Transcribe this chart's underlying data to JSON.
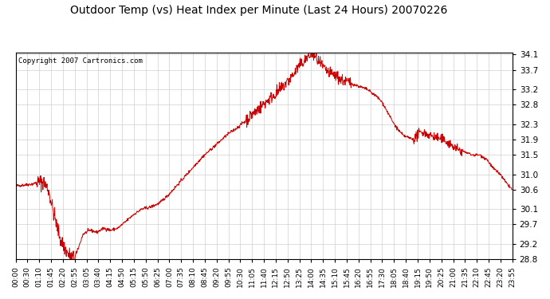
{
  "title": "Outdoor Temp (vs) Heat Index per Minute (Last 24 Hours) 20070226",
  "copyright": "Copyright 2007 Cartronics.com",
  "line_color": "#cc0000",
  "bg_color": "#ffffff",
  "grid_color": "#cccccc",
  "ylim": [
    28.8,
    34.15
  ],
  "yticks": [
    28.8,
    29.2,
    29.7,
    30.1,
    30.6,
    31.0,
    31.5,
    31.9,
    32.3,
    32.8,
    33.2,
    33.7,
    34.1
  ],
  "xtick_labels": [
    "00:00",
    "00:30",
    "01:10",
    "01:45",
    "02:20",
    "02:55",
    "03:05",
    "03:40",
    "04:15",
    "04:50",
    "05:15",
    "05:50",
    "06:25",
    "07:00",
    "07:35",
    "08:10",
    "08:45",
    "09:20",
    "09:55",
    "10:30",
    "11:05",
    "11:40",
    "12:15",
    "12:50",
    "13:25",
    "14:00",
    "14:35",
    "15:10",
    "15:45",
    "16:20",
    "16:55",
    "17:30",
    "18:05",
    "18:40",
    "19:15",
    "19:50",
    "20:25",
    "21:00",
    "21:35",
    "22:10",
    "22:45",
    "23:20",
    "23:55"
  ],
  "ctrl_x": [
    0,
    25,
    50,
    65,
    80,
    95,
    110,
    130,
    150,
    170,
    180,
    195,
    215,
    235,
    255,
    275,
    295,
    315,
    340,
    365,
    390,
    415,
    440,
    465,
    490,
    515,
    540,
    565,
    590,
    615,
    640,
    665,
    690,
    715,
    740,
    760,
    775,
    790,
    805,
    815,
    825,
    835,
    845,
    855,
    865,
    880,
    895,
    910,
    925,
    940,
    955,
    970,
    985,
    1000,
    1015,
    1030,
    1045,
    1060,
    1075,
    1090,
    1105,
    1120,
    1135,
    1150,
    1165,
    1175,
    1185,
    1200,
    1215,
    1230,
    1245,
    1260,
    1275,
    1290,
    1305,
    1320,
    1340,
    1360,
    1380,
    1400,
    1415,
    1435
  ],
  "ctrl_y": [
    30.7,
    30.72,
    30.75,
    30.8,
    30.8,
    30.6,
    30.0,
    29.3,
    28.95,
    28.8,
    29.05,
    29.45,
    29.55,
    29.5,
    29.6,
    29.55,
    29.6,
    29.75,
    29.95,
    30.1,
    30.15,
    30.25,
    30.45,
    30.7,
    30.95,
    31.2,
    31.45,
    31.65,
    31.85,
    32.05,
    32.2,
    32.4,
    32.6,
    32.8,
    33.0,
    33.15,
    33.3,
    33.45,
    33.6,
    33.75,
    33.85,
    33.95,
    34.05,
    34.1,
    34.05,
    33.85,
    33.7,
    33.6,
    33.55,
    33.45,
    33.4,
    33.35,
    33.3,
    33.25,
    33.2,
    33.1,
    33.0,
    32.85,
    32.6,
    32.35,
    32.15,
    32.0,
    31.95,
    31.9,
    32.05,
    32.1,
    32.05,
    32.0,
    31.95,
    31.9,
    31.85,
    31.75,
    31.65,
    31.6,
    31.55,
    31.5,
    31.5,
    31.4,
    31.15,
    31.0,
    30.8,
    30.6
  ],
  "noise_seed": 42
}
